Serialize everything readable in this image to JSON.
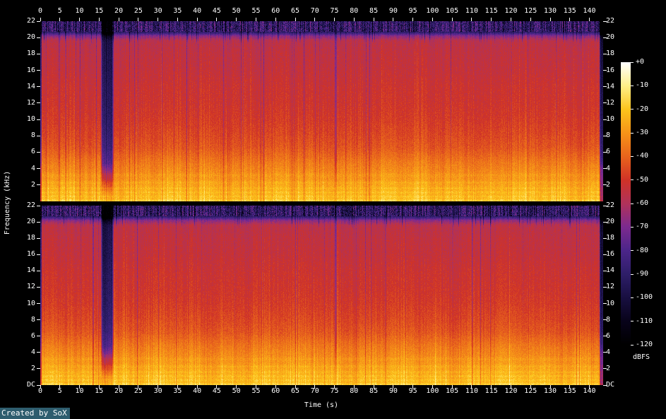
{
  "colors": {
    "background": "#000000",
    "text": "#ffffff",
    "tick": "#ffffff",
    "credit_background": "#2e5d6e"
  },
  "footer": {
    "credit": "Created by SoX"
  },
  "chart_data": {
    "type": "heatmap",
    "subtype": "audio-spectrogram",
    "channels": 2,
    "title": "",
    "xlabel": "Time (s)",
    "ylabel": "Frequency (kHz)",
    "colorbar_label": "dBFS",
    "x_range": [
      0,
      143.5
    ],
    "y_range": [
      0,
      22
    ],
    "db_range": [
      -120,
      0
    ],
    "x_ticks": [
      0,
      5,
      10,
      15,
      20,
      25,
      30,
      35,
      40,
      45,
      50,
      55,
      60,
      65,
      70,
      75,
      80,
      85,
      90,
      95,
      100,
      105,
      110,
      115,
      120,
      125,
      130,
      135,
      140
    ],
    "y_ticks": [
      22,
      20,
      18,
      16,
      14,
      12,
      10,
      8,
      6,
      4,
      2
    ],
    "dc_label": "DC",
    "colorbar_ticks": [
      "+0",
      "-10",
      "-20",
      "-30",
      "-40",
      "-50",
      "-60",
      "-70",
      "-80",
      "-90",
      "-100",
      "-110",
      "-120"
    ],
    "color_stops": [
      {
        "t": 0.0,
        "color": "#000000"
      },
      {
        "t": 0.083,
        "color": "#08031a"
      },
      {
        "t": 0.167,
        "color": "#180f41"
      },
      {
        "t": 0.25,
        "color": "#2e1e69"
      },
      {
        "t": 0.333,
        "color": "#4b2589"
      },
      {
        "t": 0.417,
        "color": "#7c2a8f"
      },
      {
        "t": 0.5,
        "color": "#b0325a"
      },
      {
        "t": 0.583,
        "color": "#cf3227"
      },
      {
        "t": 0.667,
        "color": "#e8641c"
      },
      {
        "t": 0.75,
        "color": "#f69318"
      },
      {
        "t": 0.833,
        "color": "#fcc41b"
      },
      {
        "t": 0.917,
        "color": "#ffef87"
      },
      {
        "t": 1.0,
        "color": "#ffffff"
      }
    ],
    "freq_profile_db": [
      {
        "f": 0.0,
        "db": -20
      },
      {
        "f": 0.5,
        "db": -23
      },
      {
        "f": 1.0,
        "db": -24
      },
      {
        "f": 1.8,
        "db": -26
      },
      {
        "f": 2.5,
        "db": -29
      },
      {
        "f": 3.5,
        "db": -32
      },
      {
        "f": 4.5,
        "db": -35
      },
      {
        "f": 5.5,
        "db": -39
      },
      {
        "f": 6.5,
        "db": -43
      },
      {
        "f": 8.0,
        "db": -46
      },
      {
        "f": 10.0,
        "db": -49
      },
      {
        "f": 12.0,
        "db": -51
      },
      {
        "f": 14.0,
        "db": -52
      },
      {
        "f": 16.0,
        "db": -54
      },
      {
        "f": 18.0,
        "db": -55
      },
      {
        "f": 19.6,
        "db": -57
      },
      {
        "f": 20.2,
        "db": -68
      },
      {
        "f": 20.7,
        "db": -92
      },
      {
        "f": 21.2,
        "db": -100
      },
      {
        "f": 22.0,
        "db": -104
      }
    ],
    "low_freq_bands": [
      {
        "f": 0.12,
        "w": 0.1,
        "db": 4
      },
      {
        "f": 0.6,
        "w": 0.12,
        "db": 3
      },
      {
        "f": 1.1,
        "w": 0.12,
        "db": 3
      },
      {
        "f": 1.6,
        "w": 0.1,
        "db": 2.5
      },
      {
        "f": 2.3,
        "w": 0.15,
        "db": 2.5
      },
      {
        "f": 3.2,
        "w": 0.2,
        "db": 2
      }
    ],
    "events": [
      {
        "start": 0.0,
        "end": 0.3,
        "depth_db": 34,
        "edge": 0.12,
        "min_factor": 0.85,
        "label": "start-edge"
      },
      {
        "start": 15.9,
        "end": 18.3,
        "depth_db": 42,
        "edge": 0.5,
        "min_factor": 0.1,
        "label": "quiet-passage"
      },
      {
        "start": 75.15,
        "end": 75.5,
        "depth_db": 13,
        "edge": 0.15,
        "min_factor": 0.2,
        "label": "track-gap"
      },
      {
        "start": 142.8,
        "end": 143.5,
        "depth_db": 46,
        "edge": 0.3,
        "min_factor": 0.85,
        "label": "end-edge"
      }
    ],
    "boosts": [
      {
        "start": 75.55,
        "end": 75.95,
        "boost_db": 4,
        "edge": 0.1,
        "label": "transient"
      }
    ]
  }
}
